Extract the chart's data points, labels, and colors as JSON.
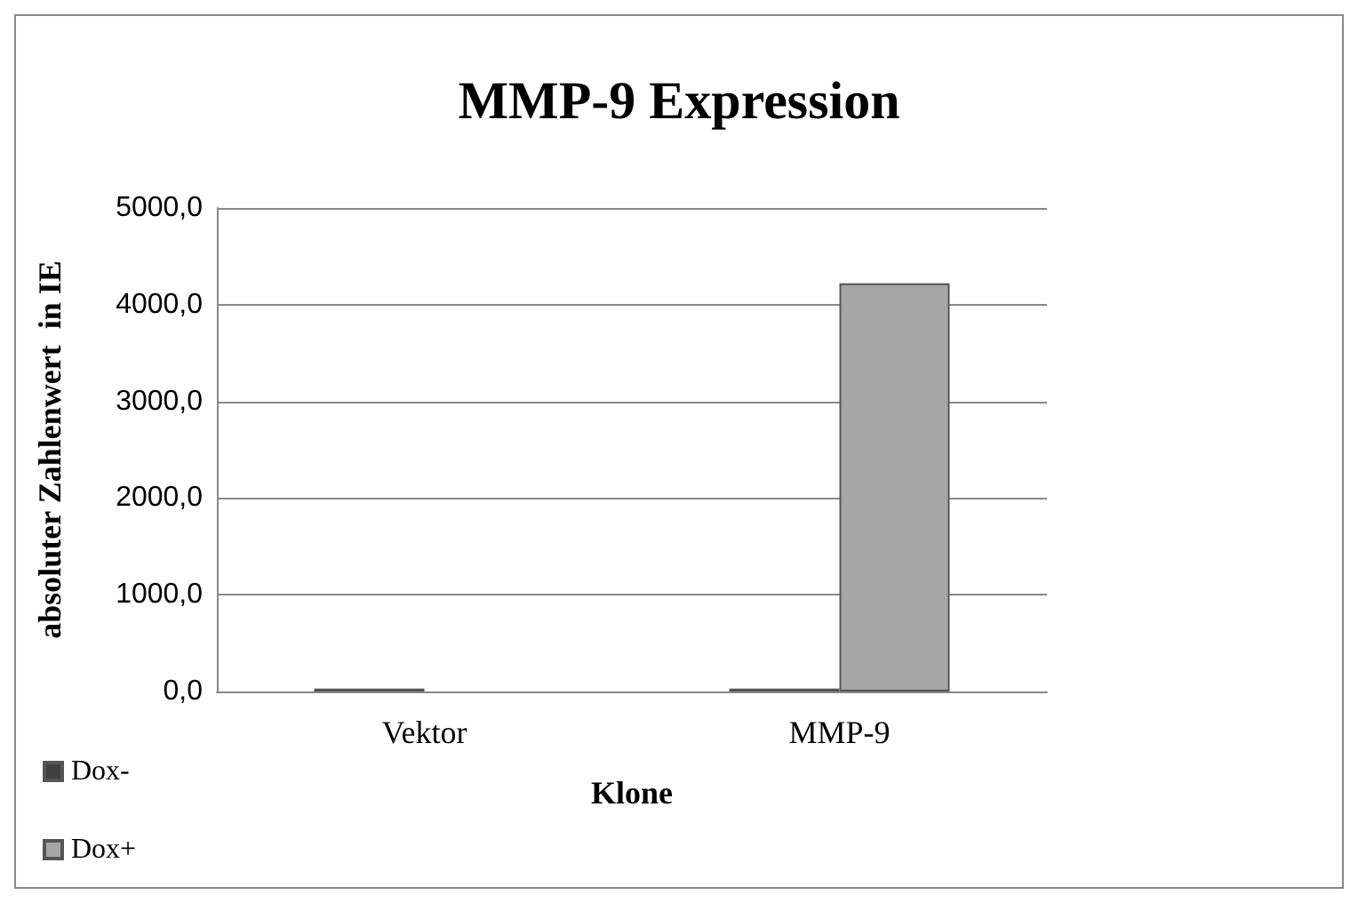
{
  "chart_data": {
    "type": "bar",
    "title": "MMP-9 Expression",
    "xlabel": "Klone",
    "ylabel": "absoluter Zahlenwert  in IE",
    "categories": [
      "Vektor",
      "MMP-9"
    ],
    "series": [
      {
        "name": "Dox-",
        "color": "#404040",
        "values": [
          30,
          30
        ]
      },
      {
        "name": "Dox+",
        "color": "#a6a6a6",
        "values": [
          null,
          4220
        ]
      }
    ],
    "ylim": [
      0,
      5000
    ],
    "yticks": [
      {
        "value": 0,
        "label": "0,0"
      },
      {
        "value": 1000,
        "label": "1000,0"
      },
      {
        "value": 2000,
        "label": "2000,0"
      },
      {
        "value": 3000,
        "label": "3000,0"
      },
      {
        "value": 4000,
        "label": "4000,0"
      },
      {
        "value": 5000,
        "label": "5000,0"
      }
    ],
    "grid": "y",
    "legend": "bottom left"
  }
}
